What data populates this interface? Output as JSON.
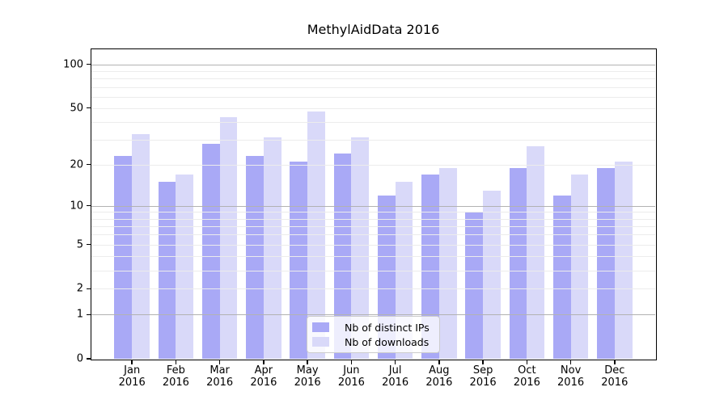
{
  "title": "MethylAidData 2016",
  "legend": {
    "items": [
      {
        "label": "Nb of distinct IPs",
        "color": "#a9a9f6"
      },
      {
        "label": "Nb of downloads",
        "color": "#d9d9f9"
      }
    ]
  },
  "chart_data": {
    "type": "bar",
    "title": "MethylAidData 2016",
    "categories": [
      "Jan 2016",
      "Feb 2016",
      "Mar 2016",
      "Apr 2016",
      "May 2016",
      "Jun 2016",
      "Jul 2016",
      "Aug 2016",
      "Sep 2016",
      "Oct 2016",
      "Nov 2016",
      "Dec 2016"
    ],
    "series": [
      {
        "name": "Nb of distinct IPs",
        "color": "#a9a9f6",
        "values": [
          23,
          15,
          28,
          23,
          21,
          24,
          12,
          17,
          9,
          19,
          12,
          19
        ]
      },
      {
        "name": "Nb of downloads",
        "color": "#d9d9f9",
        "values": [
          33,
          17,
          43,
          31,
          47,
          31,
          15,
          19,
          13,
          27,
          17,
          21
        ]
      }
    ],
    "xlabel": "",
    "ylabel": "",
    "yscale": "log1p",
    "ylim": [
      0,
      127
    ],
    "ylim_top": 127,
    "y_ticks": [
      0,
      1,
      2,
      5,
      10,
      20,
      50,
      100
    ],
    "y_major_gridlines": [
      1,
      10,
      100
    ],
    "y_minor_gridlines": [
      2,
      3,
      4,
      6,
      7,
      8,
      9,
      20,
      30,
      40,
      50,
      60,
      70,
      80,
      90,
      5
    ],
    "grid": true,
    "legend_position": "lower center"
  }
}
